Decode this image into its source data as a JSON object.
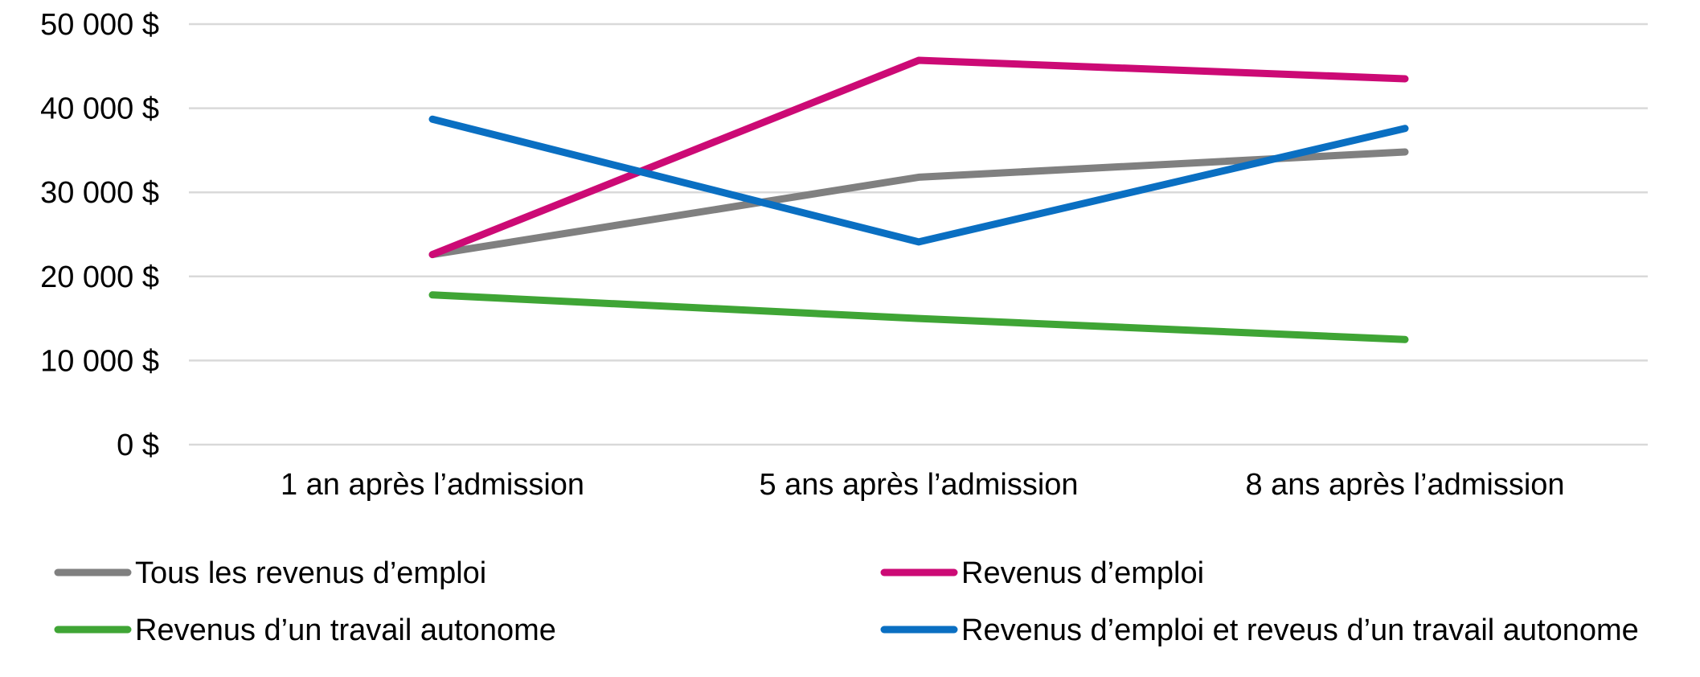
{
  "chart_data": {
    "type": "line",
    "categories": [
      "1 an après l’admission",
      "5 ans après l’admission",
      "8 ans après l’admission"
    ],
    "ylim": [
      0,
      50000
    ],
    "yticks": [
      0,
      10000,
      20000,
      30000,
      40000,
      50000
    ],
    "ytick_labels": [
      "0 $",
      "10 000 $",
      "20 000 $",
      "30 000 $",
      "40 000 $",
      "50 000 $"
    ],
    "grid": true,
    "legend_position": "bottom",
    "series": [
      {
        "name": "Tous les revenus d’emploi",
        "color": "#808080",
        "values": [
          22600,
          31800,
          34800
        ]
      },
      {
        "name": "Revenus d’emploi",
        "color": "#CC0A75",
        "values": [
          22600,
          45700,
          43500
        ]
      },
      {
        "name": "Revenus d’un travail autonome",
        "color": "#3FA535",
        "values": [
          17800,
          15000,
          12500
        ]
      },
      {
        "name": "Revenus d’emploi et reveus d’un travail autonome",
        "color": "#0A6FC2",
        "values": [
          38700,
          24100,
          37600
        ]
      }
    ]
  }
}
